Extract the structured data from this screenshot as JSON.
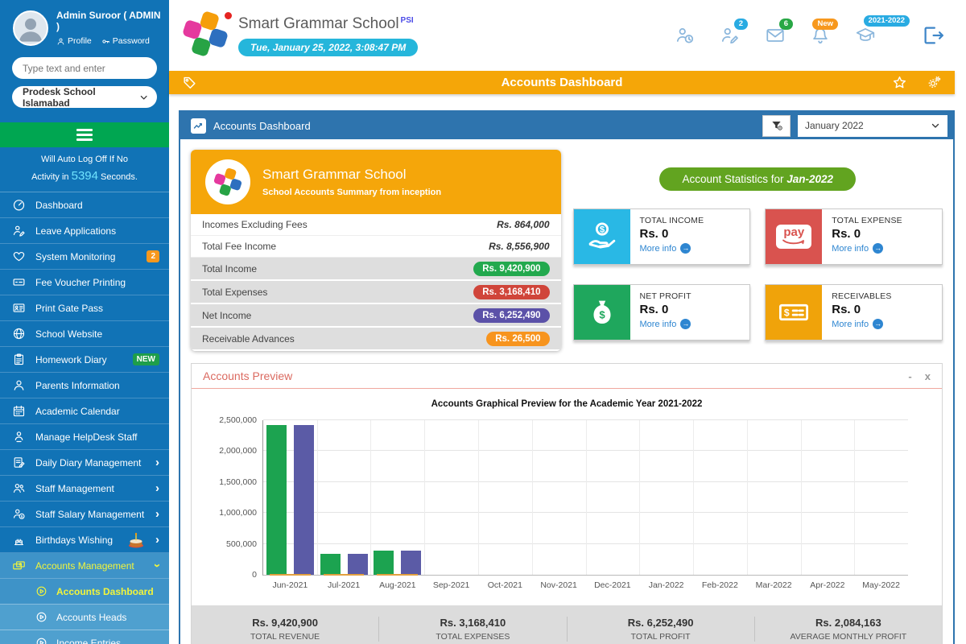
{
  "user": {
    "name": "Admin Suroor ( ADMIN )",
    "profile_label": "Profile",
    "password_label": "Password"
  },
  "sidebar": {
    "search_placeholder": "Type text and enter",
    "school_select_value": "Prodesk School Islamabad",
    "auto_logoff": {
      "line1": "Will Auto Log Off If No",
      "prefix": "Activity in",
      "seconds": "5394",
      "suffix": "Seconds."
    },
    "items": [
      {
        "label": "Dashboard",
        "icon": "gauge"
      },
      {
        "label": "Leave Applications",
        "icon": "user-pen"
      },
      {
        "label": "System Monitoring",
        "icon": "heart",
        "badge": "2",
        "badge_color": "#F7981D"
      },
      {
        "label": "Fee Voucher Printing",
        "icon": "voucher"
      },
      {
        "label": "Print Gate Pass",
        "icon": "id-card"
      },
      {
        "label": "School Website",
        "icon": "globe"
      },
      {
        "label": "Homework Diary",
        "icon": "clipboard",
        "badge": "NEW",
        "badge_color": "#1E9E4A"
      },
      {
        "label": "Parents Information",
        "icon": "user"
      },
      {
        "label": "Academic Calendar",
        "icon": "calendar"
      },
      {
        "label": "Manage HelpDesk Staff",
        "icon": "user-badge"
      },
      {
        "label": "Daily Diary Management",
        "icon": "diary",
        "chevron": "right"
      },
      {
        "label": "Staff Management",
        "icon": "users",
        "chevron": "right"
      },
      {
        "label": "Staff Salary Management",
        "icon": "salary",
        "chevron": "right"
      },
      {
        "label": "Birthdays Wishing",
        "icon": "cakeline",
        "chevron": "right",
        "cake": true
      },
      {
        "label": "Accounts Management",
        "icon": "accounts",
        "chevron": "down",
        "active": true
      }
    ],
    "submenu": [
      {
        "label": "Accounts Dashboard",
        "active": true
      },
      {
        "label": "Accounts Heads"
      },
      {
        "label": "Income Entries"
      }
    ]
  },
  "header": {
    "school_name": "Smart Grammar School",
    "superscript": "PSI",
    "datetime": "Tue, January 25, 2022, 3:08:47 PM",
    "icons": [
      {
        "name": "user-clock"
      },
      {
        "name": "user-edit",
        "badge": "2",
        "badge_color": "#29ABE2"
      },
      {
        "name": "mail",
        "badge": "6",
        "badge_color": "#28A745"
      },
      {
        "name": "bell",
        "badge": "New",
        "badge_color": "#F7981D"
      },
      {
        "name": "graduation-cap",
        "badge": "2021-2022",
        "badge_color": "#29ABE2"
      },
      {
        "name": "logout"
      }
    ]
  },
  "title_bar": {
    "title": "Accounts Dashboard"
  },
  "panel": {
    "title": "Accounts Dashboard",
    "filter_value": "January 2022"
  },
  "summary_card": {
    "title": "Smart Grammar School",
    "subtitle": "School Accounts Summary from inception",
    "rows": [
      {
        "label": "Incomes Excluding Fees",
        "value": "Rs. 864,000",
        "style": "plain"
      },
      {
        "label": "Total Fee Income",
        "value": "Rs. 8,556,900",
        "style": "plain"
      },
      {
        "label": "Total Income",
        "value": "Rs. 9,420,900",
        "style": "pill",
        "color": "#23A94E"
      },
      {
        "label": "Total Expenses",
        "value": "Rs. 3,168,410",
        "style": "pill",
        "color": "#D0453A"
      },
      {
        "label": "Net Income",
        "value": "Rs. 6,252,490",
        "style": "pill",
        "color": "#5B51A8"
      },
      {
        "label": "Receivable Advances",
        "value": "Rs. 26,500",
        "style": "pill",
        "color": "#F7941E"
      }
    ]
  },
  "statistics": {
    "heading_prefix": "Account Statistics for ",
    "heading_period": "Jan-2022",
    "cards": [
      {
        "label": "TOTAL INCOME",
        "value": "Rs. 0",
        "more": "More info",
        "color": "#29B8E5",
        "icon": "hand-dollar"
      },
      {
        "label": "TOTAL EXPENSE",
        "value": "Rs. 0",
        "more": "More info",
        "color": "#D9534F",
        "icon": "pay"
      },
      {
        "label": "NET PROFIT",
        "value": "Rs. 0",
        "more": "More info",
        "color": "#1FA75D",
        "icon": "money-bag"
      },
      {
        "label": "RECEIVABLES",
        "value": "Rs. 0",
        "more": "More info",
        "color": "#F0A30A",
        "icon": "money-check"
      }
    ]
  },
  "preview": {
    "title": "Accounts Preview",
    "minimize_label": "-",
    "close_label": "x"
  },
  "chart_data": {
    "type": "bar",
    "title": "Accounts Graphical Preview for the Academic Year 2021-2022",
    "categories": [
      "Jun-2021",
      "Jul-2021",
      "Aug-2021",
      "Sep-2021",
      "Oct-2021",
      "Nov-2021",
      "Dec-2021",
      "Jan-2022",
      "Feb-2022",
      "Mar-2022",
      "Apr-2022",
      "May-2022"
    ],
    "series": [
      {
        "name": "green-bars",
        "color": "#1CA350",
        "values": [
          2420000,
          340000,
          385000,
          0,
          0,
          0,
          0,
          0,
          0,
          0,
          0,
          0
        ]
      },
      {
        "name": "purple-bars",
        "color": "#5B5BA6",
        "values": [
          2420000,
          340000,
          385000,
          0,
          0,
          0,
          0,
          0,
          0,
          0,
          0,
          0
        ]
      }
    ],
    "ylim": [
      0,
      2500000
    ],
    "ytick_step": 500000,
    "grid": true,
    "legend": "none"
  },
  "footer_summary": [
    {
      "value": "Rs. 9,420,900",
      "label": "TOTAL REVENUE"
    },
    {
      "value": "Rs. 3,168,410",
      "label": "TOTAL EXPENSES"
    },
    {
      "value": "Rs. 6,252,490",
      "label": "TOTAL PROFIT"
    },
    {
      "value": "Rs. 2,084,163",
      "label": "AVERAGE MONTHLY PROFIT"
    }
  ]
}
